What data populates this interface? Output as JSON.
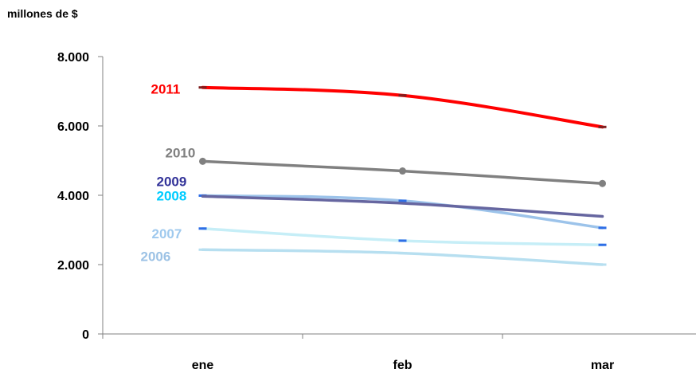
{
  "chart_data": {
    "type": "line",
    "ylabel": "millones de $",
    "categories": [
      "ene",
      "feb",
      "mar"
    ],
    "ylim": [
      0,
      8000
    ],
    "yticks": [
      0,
      2000,
      4000,
      6000,
      8000
    ],
    "ytick_labels": [
      "0",
      "2.000",
      "4.000",
      "6.000",
      "8.000"
    ],
    "grid": false,
    "legend": "none",
    "series": [
      {
        "name": "2006",
        "values": [
          2430,
          2330,
          2000
        ],
        "color": "#b7dff0",
        "marker": "dash",
        "marker_color": "#b7dff0",
        "label_color": "#9cc2e5"
      },
      {
        "name": "2007",
        "values": [
          3040,
          2690,
          2570
        ],
        "color": "#c6eef7",
        "marker": "dash",
        "marker_color": "#2e6ee6",
        "label_color": "#9fc9ee"
      },
      {
        "name": "2008",
        "values": [
          3990,
          3840,
          3060
        ],
        "color": "#9cc3ea",
        "marker": "dash",
        "marker_color": "#2e6ee6",
        "label_color": "#00ccff"
      },
      {
        "name": "2009",
        "values": [
          3970,
          3770,
          3390
        ],
        "color": "#6666a0",
        "marker": "none",
        "marker_color": "#6666a0",
        "label_color": "#333399"
      },
      {
        "name": "2010",
        "values": [
          4980,
          4700,
          4340
        ],
        "color": "#808080",
        "marker": "circle",
        "marker_color": "#808080",
        "label_color": "#808080"
      },
      {
        "name": "2011",
        "values": [
          7110,
          6880,
          5970
        ],
        "color": "#ff0000",
        "marker": "dash",
        "marker_color": "#7f1f1f",
        "label_color": "#ff0000"
      }
    ]
  }
}
